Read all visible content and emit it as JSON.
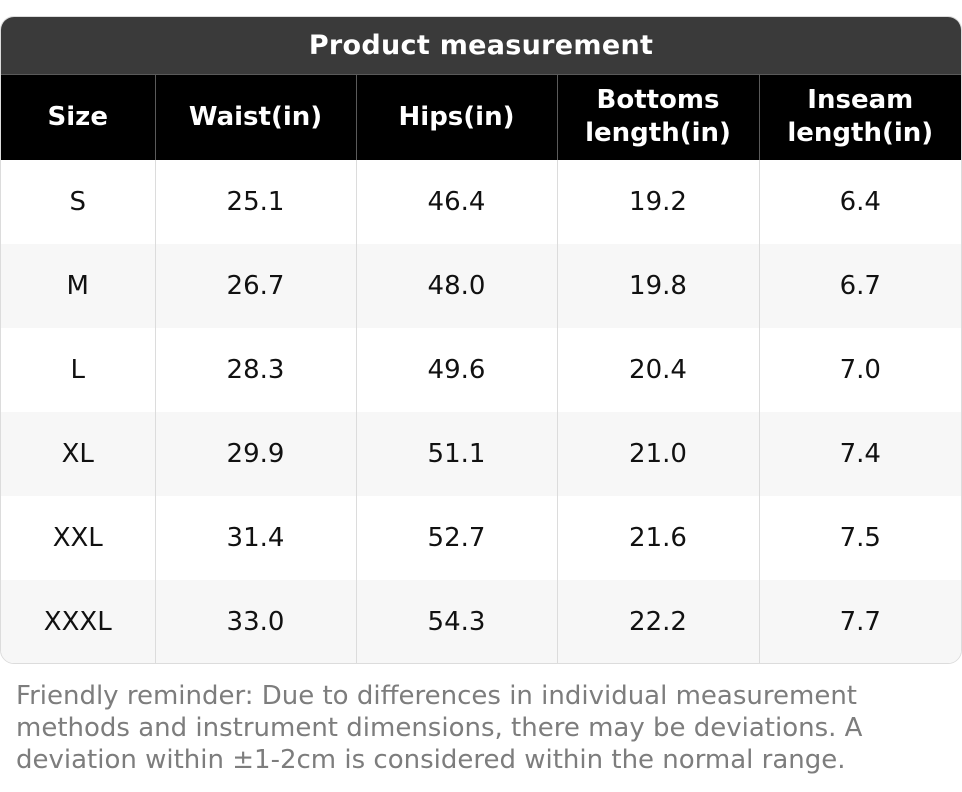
{
  "table": {
    "title": "Product measurement",
    "headers": [
      "Size",
      "Waist(in)",
      "Hips(in)",
      "Bottoms\nlength(in)",
      "Inseam\nlength(in)"
    ],
    "rows": [
      [
        "S",
        "25.1",
        "46.4",
        "19.2",
        "6.4"
      ],
      [
        "M",
        "26.7",
        "48.0",
        "19.8",
        "6.7"
      ],
      [
        "L",
        "28.3",
        "49.6",
        "20.4",
        "7.0"
      ],
      [
        "XL",
        "29.9",
        "51.1",
        "21.0",
        "7.4"
      ],
      [
        "XXL",
        "31.4",
        "52.7",
        "21.6",
        "7.5"
      ],
      [
        "XXXL",
        "33.0",
        "54.3",
        "22.2",
        "7.7"
      ]
    ]
  },
  "reminder": "Friendly reminder: Due to differences in individual measurement methods and instrument dimensions, there may be deviations. A deviation within ±1-2cm is considered within the normal range.",
  "colors": {
    "title_bg": "#3a3a3a",
    "header_bg": "#000000",
    "row_alt_bg": "#f7f7f7",
    "reminder_text": "#7d7d7d"
  }
}
